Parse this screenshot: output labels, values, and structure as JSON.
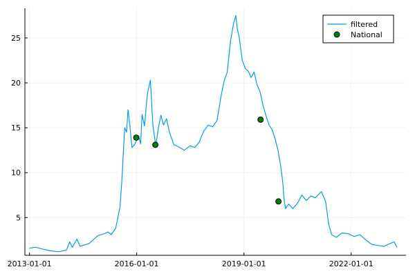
{
  "chart_data": {
    "type": "line",
    "title": "",
    "xlabel": "",
    "ylabel": "",
    "xlim": [
      "2012-11-15",
      "2023-07-15"
    ],
    "ylim": [
      0.8,
      28.3
    ],
    "x_ticks": [
      "2013-01-01",
      "2016-01-01",
      "2019-01-01",
      "2022-01-01"
    ],
    "y_ticks": [
      5,
      10,
      15,
      20,
      25
    ],
    "grid": true,
    "legend_position": "top-right",
    "series": [
      {
        "name": "filtered",
        "kind": "line",
        "color": "#009af9",
        "points": [
          [
            "2013-01-01",
            1.6
          ],
          [
            "2013-03-01",
            1.7
          ],
          [
            "2013-05-15",
            1.5
          ],
          [
            "2013-08-01",
            1.3
          ],
          [
            "2013-11-01",
            1.2
          ],
          [
            "2014-01-15",
            1.4
          ],
          [
            "2014-02-15",
            2.3
          ],
          [
            "2014-03-15",
            1.7
          ],
          [
            "2014-05-01",
            2.6
          ],
          [
            "2014-06-01",
            1.8
          ],
          [
            "2014-09-01",
            2.1
          ],
          [
            "2014-12-01",
            3.0
          ],
          [
            "2015-02-01",
            3.2
          ],
          [
            "2015-03-15",
            3.4
          ],
          [
            "2015-04-15",
            3.1
          ],
          [
            "2015-06-01",
            3.8
          ],
          [
            "2015-07-15",
            6.2
          ],
          [
            "2015-08-01",
            8.8
          ],
          [
            "2015-09-01",
            15.0
          ],
          [
            "2015-09-20",
            14.5
          ],
          [
            "2015-10-05",
            17.0
          ],
          [
            "2015-10-20",
            15.6
          ],
          [
            "2015-11-15",
            12.8
          ],
          [
            "2015-12-15",
            13.2
          ],
          [
            "2016-01-20",
            14.1
          ],
          [
            "2016-02-10",
            13.2
          ],
          [
            "2016-02-25",
            16.5
          ],
          [
            "2016-03-20",
            15.2
          ],
          [
            "2016-04-20",
            18.8
          ],
          [
            "2016-05-20",
            20.3
          ],
          [
            "2016-06-15",
            15.2
          ],
          [
            "2016-07-15",
            13.0
          ],
          [
            "2016-08-10",
            15.0
          ],
          [
            "2016-09-05",
            16.4
          ],
          [
            "2016-10-01",
            15.3
          ],
          [
            "2016-11-01",
            16.0
          ],
          [
            "2016-12-01",
            14.5
          ],
          [
            "2017-01-15",
            13.1
          ],
          [
            "2017-03-01",
            12.9
          ],
          [
            "2017-05-01",
            12.5
          ],
          [
            "2017-07-01",
            13.0
          ],
          [
            "2017-08-15",
            12.8
          ],
          [
            "2017-10-01",
            13.4
          ],
          [
            "2017-11-15",
            14.6
          ],
          [
            "2018-01-01",
            15.3
          ],
          [
            "2018-02-15",
            15.1
          ],
          [
            "2018-04-01",
            15.8
          ],
          [
            "2018-05-15",
            18.7
          ],
          [
            "2018-06-15",
            20.3
          ],
          [
            "2018-07-15",
            21.2
          ],
          [
            "2018-08-15",
            24.5
          ],
          [
            "2018-09-15",
            26.5
          ],
          [
            "2018-10-10",
            27.5
          ],
          [
            "2018-10-25",
            26.0
          ],
          [
            "2018-11-15",
            25.0
          ],
          [
            "2018-12-15",
            22.5
          ],
          [
            "2019-01-15",
            21.6
          ],
          [
            "2019-02-15",
            21.3
          ],
          [
            "2019-03-15",
            20.6
          ],
          [
            "2019-04-15",
            21.2
          ],
          [
            "2019-05-15",
            19.8
          ],
          [
            "2019-06-15",
            19.0
          ],
          [
            "2019-07-15",
            17.5
          ],
          [
            "2019-08-15",
            16.3
          ],
          [
            "2019-09-15",
            15.3
          ],
          [
            "2019-10-15",
            14.8
          ],
          [
            "2019-11-15",
            13.8
          ],
          [
            "2019-12-15",
            12.5
          ],
          [
            "2020-01-15",
            10.5
          ],
          [
            "2020-02-01",
            9.0
          ],
          [
            "2020-02-15",
            7.0
          ],
          [
            "2020-03-01",
            6.0
          ],
          [
            "2020-04-01",
            6.5
          ],
          [
            "2020-05-15",
            6.0
          ],
          [
            "2020-07-01",
            6.6
          ],
          [
            "2020-08-15",
            7.5
          ],
          [
            "2020-10-01",
            6.9
          ],
          [
            "2020-11-15",
            7.4
          ],
          [
            "2021-01-01",
            7.2
          ],
          [
            "2021-03-01",
            7.9
          ],
          [
            "2021-04-15",
            6.8
          ],
          [
            "2021-05-15",
            4.3
          ],
          [
            "2021-06-15",
            3.1
          ],
          [
            "2021-08-01",
            2.8
          ],
          [
            "2021-10-01",
            3.3
          ],
          [
            "2021-12-01",
            3.2
          ],
          [
            "2022-02-01",
            2.9
          ],
          [
            "2022-04-01",
            3.1
          ],
          [
            "2022-06-01",
            2.5
          ],
          [
            "2022-08-01",
            2.0
          ],
          [
            "2022-10-01",
            1.9
          ],
          [
            "2022-12-01",
            1.8
          ],
          [
            "2023-02-01",
            2.1
          ],
          [
            "2023-03-15",
            2.3
          ],
          [
            "2023-04-15",
            1.7
          ]
        ]
      },
      {
        "name": "National",
        "kind": "scatter",
        "color": "#008000",
        "points": [
          [
            "2015-12-28",
            13.9
          ],
          [
            "2016-07-10",
            13.1
          ],
          [
            "2019-06-20",
            15.9
          ],
          [
            "2019-12-20",
            6.8
          ]
        ]
      }
    ]
  }
}
